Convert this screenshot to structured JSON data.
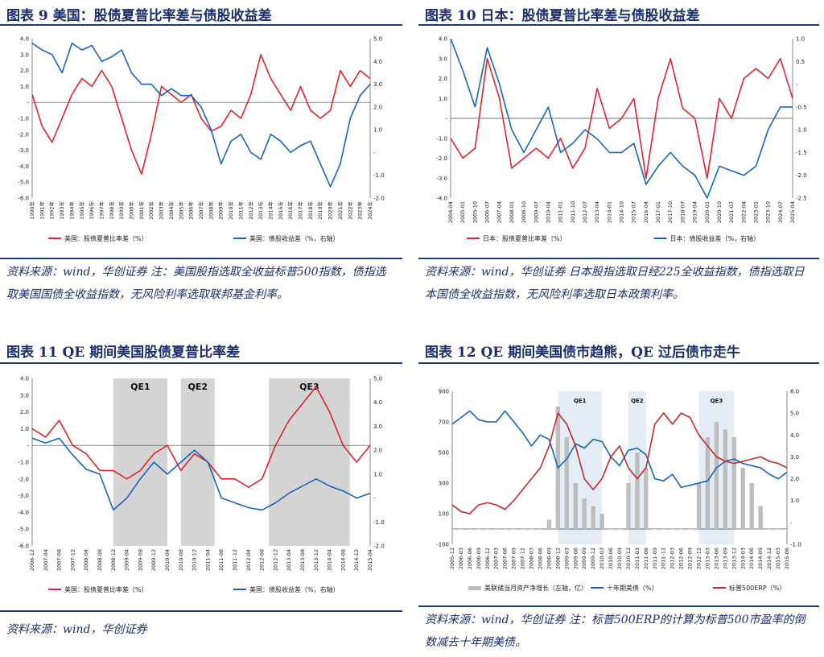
{
  "panels": [
    {
      "title": "图表 9   美国：股债夏普比率差与债股收益差",
      "note": "资料来源：wind，华创证券    注：美国股指选取全收益标普500指数，债指选取美国国债全收益指数，无风险利率选取联邦基金利率。"
    },
    {
      "title": "图表 10   日本：股债夏普比率差与债股收益差",
      "note": "资料来源：wind，华创证券    日本股指选取日经225全收益指数，债指选取日本国债全收益指数，无风险利率选取日本政策利率。"
    },
    {
      "title": "图表 11   QE 期间美国股债夏普比率差",
      "note": "资料来源：wind，华创证券"
    },
    {
      "title": "图表 12   QE 期间美国债市趋熊，QE 过后债市走牛",
      "note": "资料来源：wind，华创证券    注：标普500ERP的计算为标普500市盈率的倒数减去十年期美债。"
    }
  ],
  "chart_data": [
    {
      "type": "line",
      "x": [
        "1990年",
        "1991年",
        "1992年",
        "1993年",
        "1994年",
        "1995年",
        "1996年",
        "1997年",
        "1998年",
        "1999年",
        "2000年",
        "2001年",
        "2002年",
        "2003年",
        "2004年",
        "2005年",
        "2006年",
        "2007年",
        "2008年",
        "2009年",
        "2010年",
        "2011年",
        "2012年",
        "2013年",
        "2014年",
        "2015年",
        "2016年",
        "2017年",
        "2018年",
        "2019年",
        "2020年",
        "2021年",
        "2022年",
        "2023年",
        "2024年"
      ],
      "yticks": [
        "4.0",
        "3.0",
        "2.0",
        "1.0",
        "-",
        "-1.0",
        "-2.0",
        "-3.0",
        "-4.0",
        "-5.0",
        "-6.0"
      ],
      "y2ticks": [
        "5.0",
        "4.0",
        "3.0",
        "2.0",
        "1.0",
        "-",
        "-1.0",
        "-2.0"
      ],
      "ylim": [
        -6,
        4
      ],
      "y2lim": [
        -2,
        5
      ],
      "series": [
        {
          "name": "美国：股债夏普比率差（%）",
          "color": "#e0232c",
          "axis": "left",
          "values": [
            0.5,
            -1.5,
            -2.5,
            -1.0,
            0.5,
            1.5,
            1.0,
            2.0,
            1.0,
            -1.0,
            -3.0,
            -4.5,
            -2.0,
            1.0,
            0.5,
            0.0,
            0.5,
            -1.0,
            -1.8,
            -1.5,
            -0.5,
            -1.0,
            0.5,
            3.0,
            1.5,
            0.5,
            -0.5,
            1.0,
            -0.5,
            -1.0,
            -0.5,
            2.0,
            1.0,
            2.0,
            1.5
          ]
        },
        {
          "name": "美国：债股收益差（%，右轴）",
          "color": "#1565c0",
          "axis": "right",
          "values": [
            4.8,
            4.5,
            4.3,
            3.5,
            4.8,
            4.5,
            4.7,
            4.0,
            4.2,
            4.5,
            3.5,
            3.0,
            3.0,
            2.5,
            2.8,
            2.5,
            2.5,
            2.0,
            1.0,
            -0.5,
            0.5,
            0.8,
            0.0,
            -0.3,
            0.8,
            0.5,
            0.0,
            0.3,
            0.5,
            -0.5,
            -1.5,
            -0.5,
            1.5,
            2.5,
            3.0
          ]
        }
      ]
    },
    {
      "type": "line",
      "x": [
        "2004-04",
        "2005-01",
        "2005-10",
        "2006-07",
        "2007-04",
        "2008-01",
        "2008-10",
        "2009-07",
        "2010-04",
        "2011-01",
        "2011-10",
        "2012-07",
        "2013-04",
        "2014-01",
        "2014-10",
        "2015-07",
        "2016-04",
        "2017-01",
        "2017-10",
        "2018-07",
        "2019-04",
        "2020-01",
        "2020-10",
        "2021-07",
        "2022-04",
        "2023-01",
        "2023-10",
        "2024-07",
        "2025-04"
      ],
      "yticks": [
        "4.0",
        "3.0",
        "2.0",
        "1.0",
        "-",
        "-1.0",
        "-2.0",
        "-3.0",
        "-4.0"
      ],
      "y2ticks": [
        "1.0",
        "0.5",
        "-",
        "-0.5",
        "-1.0",
        "-1.5",
        "-2.0",
        "-2.5"
      ],
      "ylim": [
        -4,
        4
      ],
      "y2lim": [
        -2.5,
        1
      ],
      "series": [
        {
          "name": "日本：股债夏普比率差（%）",
          "color": "#e0232c",
          "axis": "left",
          "values": [
            -1.0,
            -2.0,
            -1.5,
            3.0,
            1.0,
            -2.5,
            -2.0,
            -1.5,
            -2.0,
            -1.0,
            -2.5,
            -1.5,
            1.5,
            -0.5,
            0.0,
            1.0,
            -3.0,
            1.0,
            3.0,
            0.5,
            0.0,
            -3.0,
            1.0,
            0.0,
            2.0,
            2.5,
            2.0,
            3.0,
            1.0
          ]
        },
        {
          "name": "日本：债股收益差（%，右轴）",
          "color": "#1565c0",
          "axis": "right",
          "values": [
            1.0,
            0.3,
            -0.5,
            0.8,
            0.0,
            -1.0,
            -1.5,
            -1.0,
            -0.5,
            -1.5,
            -1.3,
            -1.0,
            -1.2,
            -1.5,
            -1.5,
            -1.3,
            -2.2,
            -1.8,
            -1.5,
            -1.8,
            -2.0,
            -2.5,
            -1.8,
            -1.9,
            -2.0,
            -1.8,
            -1.0,
            -0.5,
            -0.5
          ]
        }
      ]
    },
    {
      "type": "line",
      "x": [
        "2006-12",
        "2007-04",
        "2007-08",
        "2007-12",
        "2008-04",
        "2008-08",
        "2008-12",
        "2009-04",
        "2009-08",
        "2009-12",
        "2010-04",
        "2010-08",
        "2010-12",
        "2011-04",
        "2011-08",
        "2011-12",
        "2012-04",
        "2012-08",
        "2012-12",
        "2013-04",
        "2013-08",
        "2013-12",
        "2014-04",
        "2014-08",
        "2014-12",
        "2015-04"
      ],
      "yticks": [
        "4.0",
        "3.0",
        "2.0",
        "1.0",
        "-",
        "-1.0",
        "-2.0",
        "-3.0",
        "-4.0",
        "-5.0",
        "-6.0"
      ],
      "y2ticks": [
        "5.0",
        "4.0",
        "3.0",
        "2.0",
        "1.0",
        "-",
        "-1.0",
        "-2.0"
      ],
      "ylim": [
        -6,
        4
      ],
      "y2lim": [
        -2,
        5
      ],
      "bands": [
        {
          "label": "QE1",
          "from": 6,
          "to": 10
        },
        {
          "label": "QE2",
          "from": 11,
          "to": 13.5
        },
        {
          "label": "QE3",
          "from": 17.5,
          "to": 23.5
        }
      ],
      "series": [
        {
          "name": "美国：股债夏普比率差（%）",
          "color": "#e0232c",
          "axis": "left",
          "values": [
            1.0,
            0.5,
            1.5,
            0.0,
            -0.5,
            -1.5,
            -1.5,
            -2.0,
            -1.5,
            -0.5,
            0.0,
            -1.5,
            -0.5,
            -1.0,
            -2.0,
            -2.0,
            -2.5,
            -2.0,
            0.0,
            1.5,
            2.5,
            3.5,
            2.0,
            0.0,
            -1.0,
            0.0
          ]
        },
        {
          "name": "美国：债股收益差（%，右轴）",
          "color": "#1565c0",
          "axis": "right",
          "values": [
            2.5,
            2.3,
            2.5,
            1.8,
            1.2,
            1.0,
            -0.5,
            0.0,
            0.8,
            1.5,
            1.0,
            1.5,
            2.0,
            1.5,
            0.0,
            -0.2,
            -0.4,
            -0.5,
            -0.2,
            0.2,
            0.5,
            0.8,
            0.5,
            0.3,
            0.0,
            0.2
          ]
        }
      ]
    },
    {
      "type": "bar+line",
      "x": [
        "2005-12",
        "2006-03",
        "2006-06",
        "2006-09",
        "2006-12",
        "2007-03",
        "2007-06",
        "2007-09",
        "2007-12",
        "2008-03",
        "2008-06",
        "2008-09",
        "2008-12",
        "2009-03",
        "2009-06",
        "2009-09",
        "2009-12",
        "2010-03",
        "2010-06",
        "2010-09",
        "2010-12",
        "2011-03",
        "2011-06",
        "2011-09",
        "2011-12",
        "2012-03",
        "2012-06",
        "2012-09",
        "2012-12",
        "2013-03",
        "2013-06",
        "2013-09",
        "2013-12",
        "2014-03",
        "2014-06",
        "2014-09",
        "2014-12",
        "2015-03",
        "2015-06"
      ],
      "yticks": [
        "900",
        "700",
        "500",
        "300",
        "100",
        "-100"
      ],
      "y2ticks": [
        "6.0",
        "5.0",
        "4.0",
        "3.0",
        "2.0",
        "1.0",
        "-",
        "-1.0"
      ],
      "ylim": [
        -100,
        900
      ],
      "y2lim": [
        -1,
        6
      ],
      "bands": [
        {
          "label": "QE1",
          "from": 12,
          "to": 17
        },
        {
          "label": "QE2",
          "from": 20,
          "to": 22
        },
        {
          "label": "QE3",
          "from": 28,
          "to": 32
        }
      ],
      "series": [
        {
          "name": "美联储当月资产净增长（左轴，亿）",
          "color": "#bdbdbd",
          "axis": "left",
          "kind": "bar",
          "values": [
            0,
            0,
            0,
            0,
            0,
            0,
            0,
            0,
            0,
            0,
            0,
            60,
            800,
            600,
            300,
            200,
            150,
            100,
            0,
            0,
            300,
            500,
            400,
            0,
            0,
            0,
            0,
            0,
            300,
            600,
            700,
            650,
            600,
            400,
            300,
            150,
            0,
            0,
            0
          ]
        },
        {
          "name": "十年期美债（%）",
          "color": "#1565c0",
          "axis": "right",
          "values": [
            4.5,
            4.8,
            5.1,
            4.7,
            4.6,
            4.6,
            5.1,
            4.6,
            4.1,
            3.5,
            4.0,
            3.8,
            2.5,
            2.9,
            3.6,
            3.4,
            3.8,
            3.7,
            3.0,
            2.6,
            3.3,
            3.4,
            3.1,
            2.0,
            1.9,
            2.2,
            1.6,
            1.7,
            1.8,
            1.9,
            2.5,
            2.8,
            2.9,
            2.7,
            2.6,
            2.5,
            2.2,
            2.0,
            2.3
          ]
        },
        {
          "name": "标普500ERP（%）",
          "color": "#c62828",
          "axis": "right",
          "values": [
            0.8,
            0.5,
            0.4,
            0.8,
            0.9,
            0.8,
            0.6,
            1.0,
            1.5,
            2.0,
            2.5,
            3.5,
            5.0,
            4.5,
            3.5,
            2.0,
            1.5,
            2.0,
            3.0,
            3.5,
            2.5,
            2.0,
            2.5,
            4.5,
            5.0,
            4.5,
            5.0,
            4.8,
            4.0,
            3.5,
            3.0,
            2.8,
            2.7,
            2.8,
            2.9,
            3.0,
            2.8,
            2.7,
            2.5
          ]
        }
      ]
    }
  ]
}
